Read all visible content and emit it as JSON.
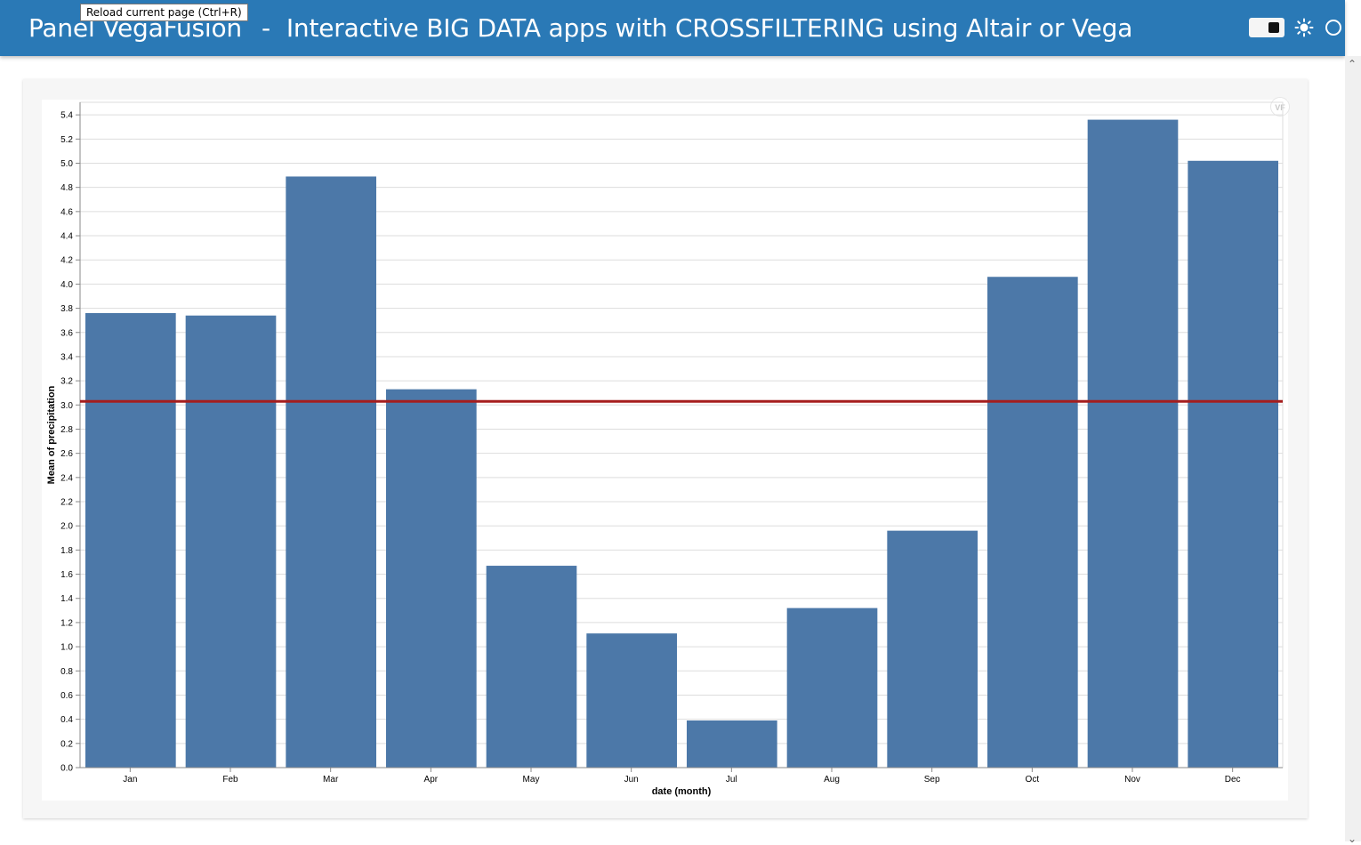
{
  "header": {
    "app_name": "Panel VegaFusion",
    "separator": "-",
    "subtitle": "Interactive BIG DATA apps with CROSSFILTERING using Altair or Vega",
    "background": "#2a79b6"
  },
  "tooltip": {
    "text": "Reload current page (Ctrl+R)"
  },
  "toolbar": {
    "icons": [
      "theme-toggle",
      "sun-icon",
      "circle-icon"
    ]
  },
  "chart_data": {
    "type": "bar",
    "categories": [
      "Jan",
      "Feb",
      "Mar",
      "Apr",
      "May",
      "Jun",
      "Jul",
      "Aug",
      "Sep",
      "Oct",
      "Nov",
      "Dec"
    ],
    "values": [
      3.76,
      3.74,
      4.89,
      3.13,
      1.67,
      1.11,
      0.39,
      1.32,
      1.96,
      4.06,
      5.36,
      5.02
    ],
    "rule": {
      "value": 3.03,
      "color": "#a51d1d"
    },
    "bar_color": "#4c78a8",
    "xlabel": "date (month)",
    "ylabel": "Mean of precipitation",
    "ylim": [
      0,
      5.4
    ],
    "yticks": [
      "0.0",
      "0.2",
      "0.4",
      "0.6",
      "0.8",
      "1.0",
      "1.2",
      "1.4",
      "1.6",
      "1.8",
      "2.0",
      "2.2",
      "2.4",
      "2.6",
      "2.8",
      "3.0",
      "3.2",
      "3.4",
      "3.6",
      "3.8",
      "4.0",
      "4.2",
      "4.4",
      "4.6",
      "4.8",
      "5.0",
      "5.2",
      "5.4"
    ],
    "grid": true,
    "legend": "none"
  }
}
